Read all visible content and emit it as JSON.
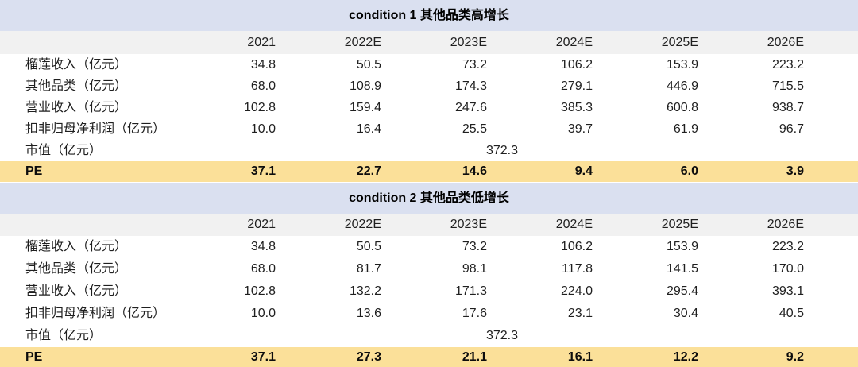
{
  "colors": {
    "title_row_bg": "#dae0f0",
    "header_row_bg": "#f1f1f1",
    "pe_highlight_bg": "#fbe099",
    "body_text": "#1f1f1f"
  },
  "chart_data": [
    {
      "type": "table",
      "title": "condition 1 其他品类高增长",
      "columns": [
        "2021",
        "2022E",
        "2023E",
        "2024E",
        "2025E",
        "2026E"
      ],
      "rows": [
        {
          "label": "榴莲收入（亿元）",
          "values": [
            "34.8",
            "50.5",
            "73.2",
            "106.2",
            "153.9",
            "223.2"
          ]
        },
        {
          "label": "其他品类（亿元）",
          "values": [
            "68.0",
            "108.9",
            "174.3",
            "279.1",
            "446.9",
            "715.5"
          ]
        },
        {
          "label": "营业收入（亿元）",
          "values": [
            "102.8",
            "159.4",
            "247.6",
            "385.3",
            "600.8",
            "938.7"
          ]
        },
        {
          "label": "扣非归母净利润（亿元）",
          "values": [
            "10.0",
            "16.4",
            "25.5",
            "39.7",
            "61.9",
            "96.7"
          ]
        },
        {
          "label": "市值（亿元）",
          "merged_value": "372.3"
        },
        {
          "label": "PE",
          "highlight": true,
          "values": [
            "37.1",
            "22.7",
            "14.6",
            "9.4",
            "6.0",
            "3.9"
          ]
        }
      ]
    },
    {
      "type": "table",
      "title": "condition 2 其他品类低增长",
      "columns": [
        "2021",
        "2022E",
        "2023E",
        "2024E",
        "2025E",
        "2026E"
      ],
      "rows": [
        {
          "label": "榴莲收入（亿元）",
          "values": [
            "34.8",
            "50.5",
            "73.2",
            "106.2",
            "153.9",
            "223.2"
          ]
        },
        {
          "label": "其他品类（亿元）",
          "values": [
            "68.0",
            "81.7",
            "98.1",
            "117.8",
            "141.5",
            "170.0"
          ]
        },
        {
          "label": "营业收入（亿元）",
          "values": [
            "102.8",
            "132.2",
            "171.3",
            "224.0",
            "295.4",
            "393.1"
          ]
        },
        {
          "label": "扣非归母净利润（亿元）",
          "values": [
            "10.0",
            "13.6",
            "17.6",
            "23.1",
            "30.4",
            "40.5"
          ]
        },
        {
          "label": "市值（亿元）",
          "merged_value": "372.3"
        },
        {
          "label": "PE",
          "highlight": true,
          "values": [
            "37.1",
            "27.3",
            "21.1",
            "16.1",
            "12.2",
            "9.2"
          ]
        }
      ]
    }
  ]
}
